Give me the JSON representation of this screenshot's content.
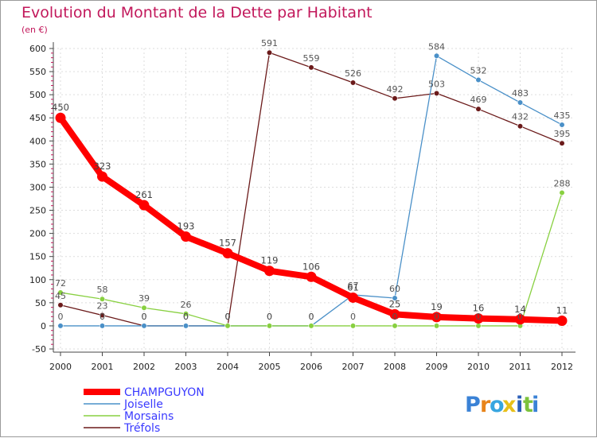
{
  "colors": {
    "title": "#c2185b",
    "axis": "#444444",
    "grid": "#dddddd",
    "CHAMPGUYON": "#ff0000",
    "Joiselle": "#4a90c8",
    "Morsains": "#88d040",
    "Tréfols": "#6b1a1a",
    "legend_text": "#3a3aff"
  },
  "logo": {
    "letters": [
      "P",
      "r",
      "o",
      "x",
      "i",
      "t",
      "i"
    ],
    "colors": [
      "#3a82d6",
      "#e8841a",
      "#38a6e0",
      "#e8c01a",
      "#2c5fb8",
      "#7cc23c",
      "#3a82d6"
    ]
  },
  "chart_data": {
    "type": "line",
    "title": "Evolution du Montant de la Dette par Habitant",
    "ylabel": "(en €)",
    "xlabel": "",
    "x": [
      "2000",
      "2001",
      "2002",
      "2003",
      "2004",
      "2005",
      "2006",
      "2007",
      "2008",
      "2009",
      "2010",
      "2011",
      "2012"
    ],
    "ylim": [
      -50,
      600
    ],
    "yticks": [
      "-50",
      "0",
      "50",
      "100",
      "150",
      "200",
      "250",
      "300",
      "350",
      "400",
      "450",
      "500",
      "550",
      "600"
    ],
    "grid": true,
    "series": [
      {
        "name": "CHAMPGUYON",
        "values": [
          450,
          323,
          261,
          193,
          157,
          119,
          106,
          61,
          25,
          19,
          16,
          14,
          11
        ],
        "labels": [
          "450",
          "323",
          "261",
          "193",
          "157",
          "119",
          "106",
          "61",
          "25",
          "19",
          "16",
          "14",
          "11"
        ]
      },
      {
        "name": "Joiselle",
        "values": [
          0,
          0,
          0,
          0,
          0,
          0,
          0,
          67,
          60,
          584,
          532,
          483,
          435
        ],
        "labels": [
          "0",
          "0",
          "0",
          "0",
          "0",
          "0",
          "0",
          "67",
          "60",
          "584",
          "532",
          "483",
          "435"
        ]
      },
      {
        "name": "Morsains",
        "values": [
          72,
          58,
          39,
          26,
          0,
          0,
          0,
          0,
          0,
          0,
          0,
          0,
          288
        ],
        "labels": [
          "72",
          "58",
          "39",
          "26",
          "0",
          "0",
          "0",
          "0",
          "0",
          "0",
          "0",
          "0",
          "288"
        ]
      },
      {
        "name": "Tréfols",
        "values": [
          45,
          23,
          0,
          0,
          0,
          591,
          559,
          526,
          492,
          503,
          469,
          432,
          395
        ],
        "labels": [
          "45",
          "23",
          "0",
          "0",
          "0",
          "591",
          "559",
          "526",
          "492",
          "503",
          "469",
          "432",
          "395"
        ]
      }
    ],
    "legend_position": "bottom-left"
  }
}
